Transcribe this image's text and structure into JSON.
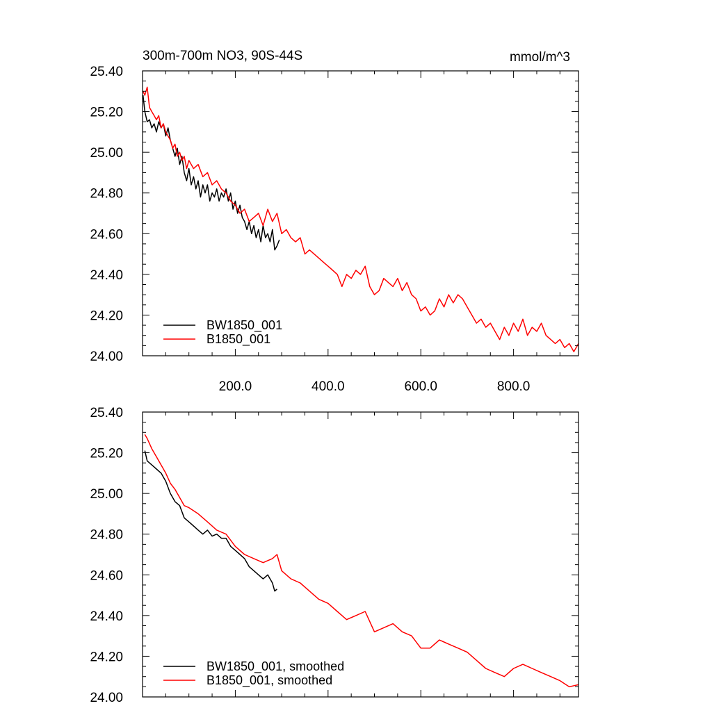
{
  "chart_data": [
    {
      "type": "line",
      "title": "300m-700m NO3, 90S-44S",
      "units": "mmol/m^3",
      "xlim": [
        0,
        940
      ],
      "ylim": [
        24.0,
        25.4
      ],
      "x_ticks": [
        200,
        400,
        600,
        800
      ],
      "x_tick_labels": [
        "200.0",
        "400.0",
        "600.0",
        "800.0"
      ],
      "y_ticks": [
        24.0,
        24.2,
        24.4,
        24.6,
        24.8,
        25.0,
        25.2,
        25.4
      ],
      "y_tick_labels": [
        "24.00",
        "24.20",
        "24.40",
        "24.60",
        "24.80",
        "25.00",
        "25.20",
        "25.40"
      ],
      "legend_position": "bottom-left",
      "series": [
        {
          "name": "BW1850_001",
          "color": "#000000",
          "x": [
            1,
            5,
            10,
            15,
            20,
            25,
            30,
            35,
            40,
            45,
            50,
            55,
            60,
            65,
            70,
            75,
            80,
            85,
            90,
            95,
            100,
            105,
            110,
            115,
            120,
            125,
            130,
            135,
            140,
            145,
            150,
            155,
            160,
            165,
            170,
            175,
            180,
            185,
            190,
            195,
            200,
            205,
            210,
            215,
            220,
            225,
            230,
            235,
            240,
            245,
            250,
            255,
            260,
            265,
            270,
            275,
            280,
            285,
            290,
            295
          ],
          "y": [
            25.28,
            25.2,
            25.15,
            25.16,
            25.12,
            25.14,
            25.1,
            25.15,
            25.12,
            25.14,
            25.08,
            25.12,
            25.06,
            25.02,
            24.98,
            25.02,
            24.94,
            24.98,
            24.9,
            24.86,
            24.92,
            24.84,
            24.88,
            24.82,
            24.86,
            24.78,
            24.84,
            24.8,
            24.84,
            24.76,
            24.8,
            24.78,
            24.82,
            24.76,
            24.8,
            24.78,
            24.82,
            24.76,
            24.8,
            24.72,
            24.76,
            24.7,
            24.74,
            24.68,
            24.66,
            24.62,
            24.66,
            24.6,
            24.64,
            24.58,
            24.62,
            24.56,
            24.64,
            24.58,
            24.6,
            24.56,
            24.62,
            24.52,
            24.54,
            24.57
          ]
        },
        {
          "name": "B1850_001",
          "color": "#ff0000",
          "x": [
            1,
            5,
            10,
            15,
            20,
            25,
            30,
            35,
            40,
            45,
            50,
            55,
            60,
            65,
            70,
            75,
            80,
            85,
            90,
            95,
            100,
            110,
            120,
            130,
            140,
            150,
            160,
            170,
            180,
            190,
            200,
            210,
            220,
            230,
            240,
            250,
            260,
            270,
            280,
            290,
            300,
            310,
            320,
            330,
            340,
            350,
            360,
            370,
            380,
            390,
            400,
            410,
            420,
            430,
            440,
            450,
            460,
            470,
            480,
            490,
            500,
            510,
            520,
            530,
            540,
            550,
            560,
            570,
            580,
            590,
            600,
            610,
            620,
            630,
            640,
            650,
            660,
            670,
            680,
            690,
            700,
            710,
            720,
            730,
            740,
            750,
            760,
            770,
            780,
            790,
            800,
            810,
            820,
            830,
            840,
            850,
            860,
            870,
            880,
            890,
            900,
            910,
            920,
            930,
            940
          ],
          "y": [
            25.3,
            25.28,
            25.32,
            25.22,
            25.2,
            25.18,
            25.16,
            25.18,
            25.12,
            25.14,
            25.1,
            25.08,
            25.06,
            25.02,
            25.04,
            24.98,
            25.0,
            24.96,
            24.98,
            24.92,
            24.96,
            24.92,
            24.94,
            24.88,
            24.9,
            24.84,
            24.86,
            24.82,
            24.8,
            24.76,
            24.74,
            24.7,
            24.72,
            24.66,
            24.68,
            24.7,
            24.64,
            24.72,
            24.66,
            24.7,
            24.6,
            24.62,
            24.58,
            24.56,
            24.58,
            24.5,
            24.52,
            24.5,
            24.48,
            24.46,
            24.44,
            24.42,
            24.4,
            24.34,
            24.4,
            24.38,
            24.42,
            24.4,
            24.44,
            24.34,
            24.3,
            24.32,
            24.38,
            24.36,
            24.34,
            24.38,
            24.32,
            24.36,
            24.3,
            24.28,
            24.22,
            24.24,
            24.2,
            24.22,
            24.28,
            24.24,
            24.3,
            24.26,
            24.3,
            24.28,
            24.24,
            24.2,
            24.16,
            24.18,
            24.14,
            24.16,
            24.12,
            24.08,
            24.14,
            24.1,
            24.16,
            24.12,
            24.18,
            24.1,
            24.14,
            24.12,
            24.16,
            24.1,
            24.08,
            24.06,
            24.08,
            24.04,
            24.06,
            24.02,
            24.06
          ]
        }
      ]
    },
    {
      "type": "line",
      "xlim": [
        0,
        940
      ],
      "ylim": [
        24.0,
        25.4
      ],
      "x_ticks": [
        200,
        400,
        600,
        800
      ],
      "y_ticks": [
        24.0,
        24.2,
        24.4,
        24.6,
        24.8,
        25.0,
        25.2,
        25.4
      ],
      "y_tick_labels": [
        "24.00",
        "24.20",
        "24.40",
        "24.60",
        "24.80",
        "25.00",
        "25.20",
        "25.40"
      ],
      "legend_position": "bottom-left",
      "series": [
        {
          "name": "BW1850_001, smoothed",
          "color": "#000000",
          "x": [
            5,
            10,
            20,
            30,
            40,
            50,
            60,
            70,
            80,
            90,
            100,
            110,
            120,
            130,
            140,
            150,
            160,
            170,
            180,
            190,
            200,
            210,
            220,
            230,
            240,
            250,
            260,
            270,
            280,
            285,
            290
          ],
          "y": [
            25.21,
            25.16,
            25.14,
            25.12,
            25.1,
            25.06,
            25.0,
            24.96,
            24.94,
            24.88,
            24.86,
            24.84,
            24.82,
            24.8,
            24.82,
            24.79,
            24.8,
            24.78,
            24.78,
            24.74,
            24.72,
            24.7,
            24.68,
            24.64,
            24.62,
            24.6,
            24.58,
            24.6,
            24.56,
            24.52,
            24.53
          ]
        },
        {
          "name": "B1850_001, smoothed",
          "color": "#ff0000",
          "x": [
            5,
            10,
            20,
            30,
            40,
            50,
            60,
            70,
            80,
            90,
            100,
            120,
            140,
            160,
            180,
            200,
            220,
            240,
            260,
            280,
            290,
            300,
            320,
            340,
            360,
            380,
            400,
            420,
            440,
            460,
            480,
            500,
            520,
            540,
            560,
            580,
            600,
            620,
            640,
            660,
            680,
            700,
            720,
            740,
            760,
            780,
            800,
            820,
            840,
            860,
            880,
            900,
            920,
            940
          ],
          "y": [
            25.29,
            25.27,
            25.22,
            25.18,
            25.14,
            25.1,
            25.05,
            25.02,
            24.98,
            24.94,
            24.93,
            24.9,
            24.86,
            24.82,
            24.8,
            24.74,
            24.7,
            24.68,
            24.66,
            24.68,
            24.7,
            24.62,
            24.58,
            24.56,
            24.52,
            24.48,
            24.46,
            24.42,
            24.38,
            24.4,
            24.42,
            24.32,
            24.34,
            24.36,
            24.32,
            24.3,
            24.24,
            24.24,
            24.28,
            24.26,
            24.24,
            24.22,
            24.18,
            24.14,
            24.12,
            24.1,
            24.14,
            24.16,
            24.14,
            24.12,
            24.1,
            24.08,
            24.05,
            24.06
          ]
        }
      ]
    }
  ]
}
